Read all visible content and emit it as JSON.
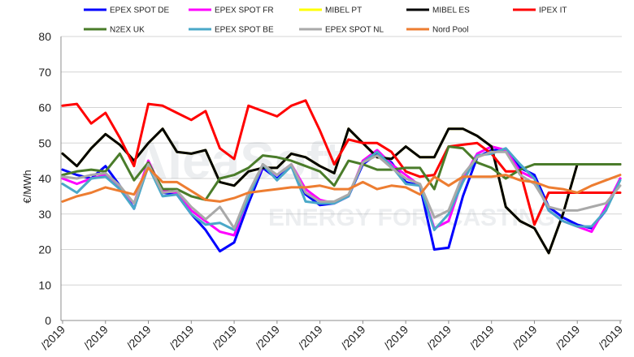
{
  "chart_data": {
    "type": "line",
    "title": "",
    "xlabel": "",
    "ylabel": "€/MWh",
    "ylim": [
      0,
      80
    ],
    "yticks": [
      0,
      10,
      20,
      30,
      40,
      50,
      60,
      70,
      80
    ],
    "grid": true,
    "legend_position": "top",
    "watermark": {
      "brand": "AleaSoft",
      "subtitle": "ENERGY FORECASTING"
    },
    "x_tick_labels": [
      "/2019",
      "/2019",
      "/2019",
      "/2019",
      "/2019",
      "/2019",
      "/2019",
      "/2019",
      "/2019",
      "/2019",
      "/2019",
      "/2019",
      "/2019",
      "/2019"
    ],
    "x_tick_index": [
      0,
      3,
      6,
      9,
      12,
      15,
      18,
      21,
      24,
      27,
      30,
      33,
      36,
      39
    ],
    "series": [
      {
        "name": "EPEX SPOT DE",
        "color": "#0000ff",
        "values": [
          42.5,
          41,
          40,
          43.5,
          38,
          31.5,
          44,
          36,
          35.5,
          30,
          25.5,
          19.5,
          22,
          33,
          43,
          40,
          43.5,
          35.5,
          32.5,
          33,
          35,
          44,
          47,
          44.5,
          39,
          38,
          20,
          20.5,
          35,
          46,
          48,
          48,
          43,
          41,
          32,
          29,
          27,
          26,
          31,
          40
        ]
      },
      {
        "name": "EPEX SPOT FR",
        "color": "#ff00ff",
        "values": [
          40,
          38.5,
          40,
          41,
          37,
          33,
          45,
          36.5,
          36,
          31,
          28,
          25,
          24,
          35,
          43.5,
          41,
          44,
          37,
          34,
          33,
          35,
          45,
          48,
          44,
          41,
          38,
          26,
          28,
          40,
          47,
          49,
          48,
          42,
          40,
          31,
          28,
          26.5,
          25,
          32,
          40
        ]
      },
      {
        "name": "MIBEL PT",
        "color": "#ffff00",
        "values": [
          47,
          43.5,
          48.5,
          52.5,
          49.5,
          45,
          50,
          54,
          47.5,
          47,
          48,
          39,
          38,
          42,
          43,
          43,
          47,
          46,
          43.5,
          41.5,
          54,
          50,
          46,
          45.5,
          49,
          46,
          46,
          54,
          54,
          52,
          49,
          32,
          28,
          26,
          19,
          30,
          44,
          44,
          44,
          44
        ]
      },
      {
        "name": "MIBEL ES",
        "color": "#000000",
        "values": [
          47,
          43.5,
          48.5,
          52.5,
          49.5,
          45,
          50,
          54,
          47.5,
          47,
          48,
          39,
          38,
          42,
          43,
          43,
          47,
          46,
          43.5,
          41.5,
          54,
          50,
          46,
          45.5,
          49,
          46,
          46,
          54,
          54,
          52,
          49,
          32,
          28,
          26,
          19,
          30,
          44,
          44,
          44,
          44
        ]
      },
      {
        "name": "IPEX IT",
        "color": "#ff0000",
        "values": [
          60.5,
          61,
          55.5,
          58.5,
          51.5,
          43.5,
          61,
          60.5,
          58.5,
          56.5,
          59,
          48.5,
          45.5,
          60.5,
          59,
          57.5,
          60.5,
          62,
          53.5,
          44,
          51,
          50,
          50,
          47.5,
          42,
          40.5,
          41,
          49,
          49.5,
          50,
          47,
          42,
          42,
          27,
          36,
          36,
          36,
          36,
          36,
          36
        ]
      },
      {
        "name": "N2EX UK",
        "color": "#4a7c2a",
        "values": [
          41,
          42,
          42.5,
          42,
          47,
          39.5,
          44.5,
          37,
          37,
          35,
          34,
          40,
          41,
          43,
          46.5,
          46,
          45,
          43.5,
          42,
          38,
          45,
          44,
          42.5,
          42.5,
          43,
          43,
          37,
          49,
          48.5,
          44.5,
          43,
          40,
          42.5,
          44,
          44,
          44,
          44,
          44,
          44,
          44
        ]
      },
      {
        "name": "EPEX SPOT BE",
        "color": "#4aa8c8",
        "values": [
          38.5,
          36,
          40,
          40.5,
          37,
          31.5,
          43.5,
          35,
          35.5,
          30,
          27,
          27.5,
          25.5,
          34.5,
          44,
          39.5,
          43.5,
          33.5,
          33,
          33,
          35,
          44.5,
          47.5,
          43.5,
          38.5,
          38,
          25.5,
          30,
          39,
          46.5,
          47,
          48.5,
          44,
          40,
          31,
          28,
          26.5,
          26.5,
          31,
          39.5
        ]
      },
      {
        "name": "EPEX SPOT NL",
        "color": "#a9a9a9",
        "values": [
          40.5,
          40,
          41,
          41.5,
          38,
          33,
          44,
          36,
          36.5,
          32,
          28.5,
          32,
          26,
          36,
          44,
          41,
          44,
          36,
          33.5,
          33.5,
          35.5,
          44.5,
          46.5,
          43,
          40,
          38.5,
          29,
          31,
          41,
          46,
          47.5,
          47.5,
          41,
          38.5,
          32,
          31,
          31,
          32,
          33,
          38
        ]
      },
      {
        "name": "Nord Pool",
        "color": "#ed7d31",
        "values": [
          33.5,
          35,
          36,
          37.5,
          36.5,
          35.5,
          43,
          39,
          39,
          36.5,
          34,
          33.5,
          34.5,
          36,
          36.5,
          37,
          37.5,
          37.5,
          38,
          37,
          37,
          39,
          37,
          38,
          37.5,
          35.5,
          40.5,
          38,
          40.5,
          40.5,
          40.5,
          41,
          39.5,
          39,
          37.5,
          37,
          36,
          38,
          39.5,
          41
        ]
      }
    ]
  }
}
